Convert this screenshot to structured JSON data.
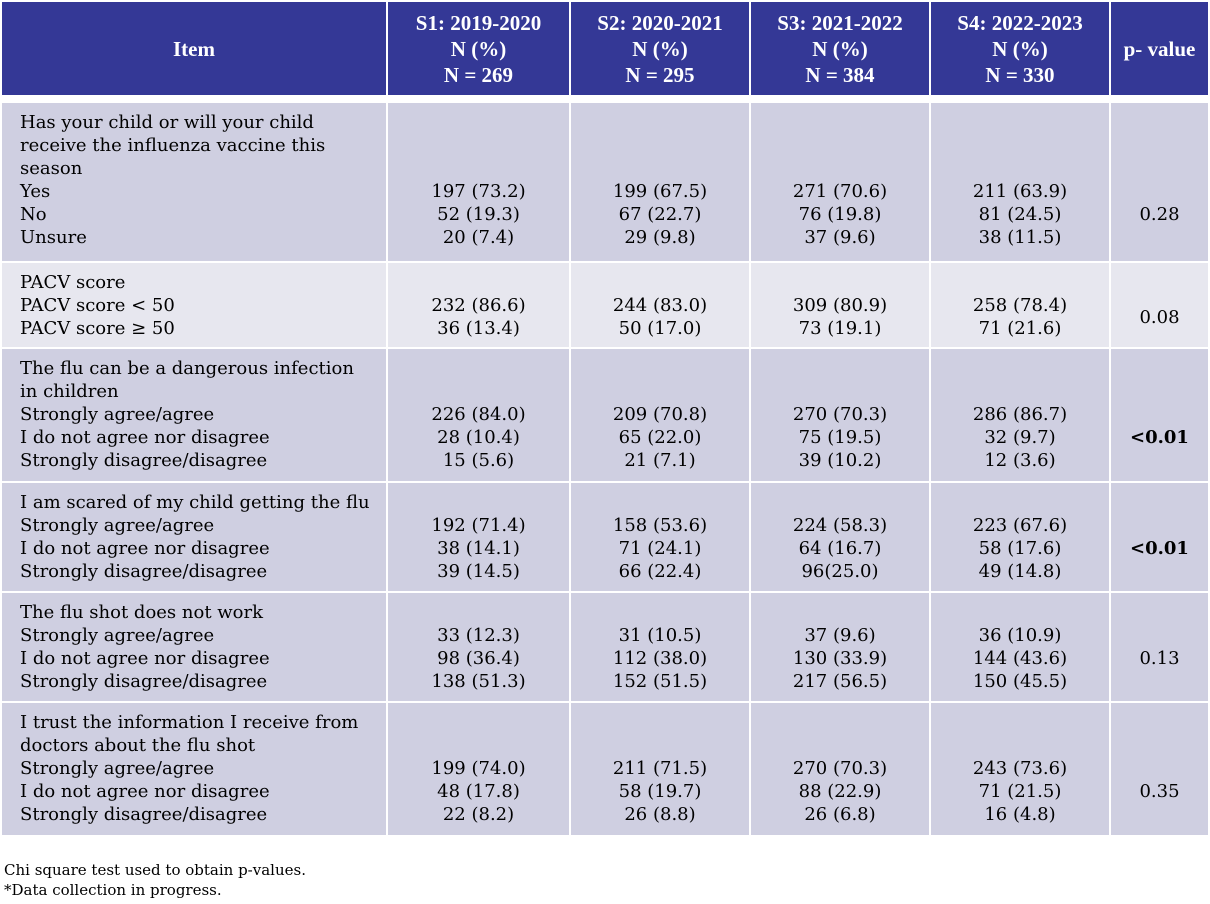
{
  "header": {
    "item": "Item",
    "s1": [
      "S1: 2019-2020",
      "N (%)",
      "N = 269"
    ],
    "s2": [
      "S2: 2020-2021",
      "N (%)",
      "N = 295"
    ],
    "s3": [
      "S3: 2021-2022",
      "N (%)",
      "N = 384"
    ],
    "s4": [
      "S4: 2022-2023",
      "N (%)",
      "N = 330"
    ],
    "p": "p- value"
  },
  "rows": [
    {
      "question": [
        "Has your child or will your child",
        "receive the influenza vaccine this",
        "season"
      ],
      "options": [
        "Yes",
        "No",
        "Unsure"
      ],
      "s1": [
        "197 (73.2)",
        "52 (19.3)",
        "20 (7.4)"
      ],
      "s2": [
        "199 (67.5)",
        "67 (22.7)",
        "29 (9.8)"
      ],
      "s3": [
        "271 (70.6)",
        "76 (19.8)",
        "37 (9.6)"
      ],
      "s4": [
        "211 (63.9)",
        "81 (24.5)",
        "38 (11.5)"
      ],
      "p": "0.28"
    },
    {
      "question": [
        "PACV score"
      ],
      "options": [
        "PACV score < 50",
        "PACV score ≥ 50"
      ],
      "s1": [
        "232 (86.6)",
        "36 (13.4)"
      ],
      "s2": [
        "244 (83.0)",
        "50 (17.0)"
      ],
      "s3": [
        "309 (80.9)",
        "73 (19.1)"
      ],
      "s4": [
        "258 (78.4)",
        "71 (21.6)"
      ],
      "p": "0.08"
    },
    {
      "question": [
        "The flu can be a dangerous infection",
        "in children"
      ],
      "options": [
        "Strongly agree/agree",
        "I do not agree nor disagree",
        "Strongly disagree/disagree"
      ],
      "s1": [
        "226 (84.0)",
        "28 (10.4)",
        "15 (5.6)"
      ],
      "s2": [
        "209 (70.8)",
        "65 (22.0)",
        "21 (7.1)"
      ],
      "s3": [
        "270 (70.3)",
        "75 (19.5)",
        "39 (10.2)"
      ],
      "s4": [
        "286 (86.7)",
        "32 (9.7)",
        "12 (3.6)"
      ],
      "p": "<0.01"
    },
    {
      "question": [
        "I am scared of my child getting the flu"
      ],
      "options": [
        "Strongly agree/agree",
        "I do not agree nor disagree",
        "Strongly disagree/disagree"
      ],
      "s1": [
        "192 (71.4)",
        "38 (14.1)",
        "39 (14.5)"
      ],
      "s2": [
        "158 (53.6)",
        "71 (24.1)",
        "66 (22.4)"
      ],
      "s3": [
        "224 (58.3)",
        "64 (16.7)",
        "96(25.0)"
      ],
      "s4": [
        "223 (67.6)",
        "58 (17.6)",
        "49 (14.8)"
      ],
      "p": "<0.01"
    },
    {
      "question": [
        "The flu shot does not work"
      ],
      "options": [
        "Strongly agree/agree",
        "I do not agree nor disagree",
        "Strongly disagree/disagree"
      ],
      "s1": [
        "33 (12.3)",
        "98 (36.4)",
        "138 (51.3)"
      ],
      "s2": [
        "31 (10.5)",
        "112 (38.0)",
        "152 (51.5)"
      ],
      "s3": [
        "37 (9.6)",
        "130 (33.9)",
        "217 (56.5)"
      ],
      "s4": [
        "36 (10.9)",
        "144 (43.6)",
        "150 (45.5)"
      ],
      "p": "0.13"
    },
    {
      "question": [
        "I trust the information I receive from",
        "doctors about the flu shot"
      ],
      "options": [
        "Strongly agree/agree",
        "I do not agree nor disagree",
        "Strongly disagree/disagree"
      ],
      "s1": [
        "199 (74.0)",
        "48 (17.8)",
        "22 (8.2)"
      ],
      "s2": [
        "211 (71.5)",
        "58 (19.7)",
        "26 (8.8)"
      ],
      "s3": [
        "270 (70.3)",
        "88 (22.9)",
        "26 (6.8)"
      ],
      "s4": [
        "243 (73.6)",
        "71 (21.5)",
        "16 (4.8)"
      ],
      "p": "0.35"
    }
  ],
  "footnotes": [
    "Chi square test used to obtain p-values.",
    "*Data collection in progress."
  ]
}
